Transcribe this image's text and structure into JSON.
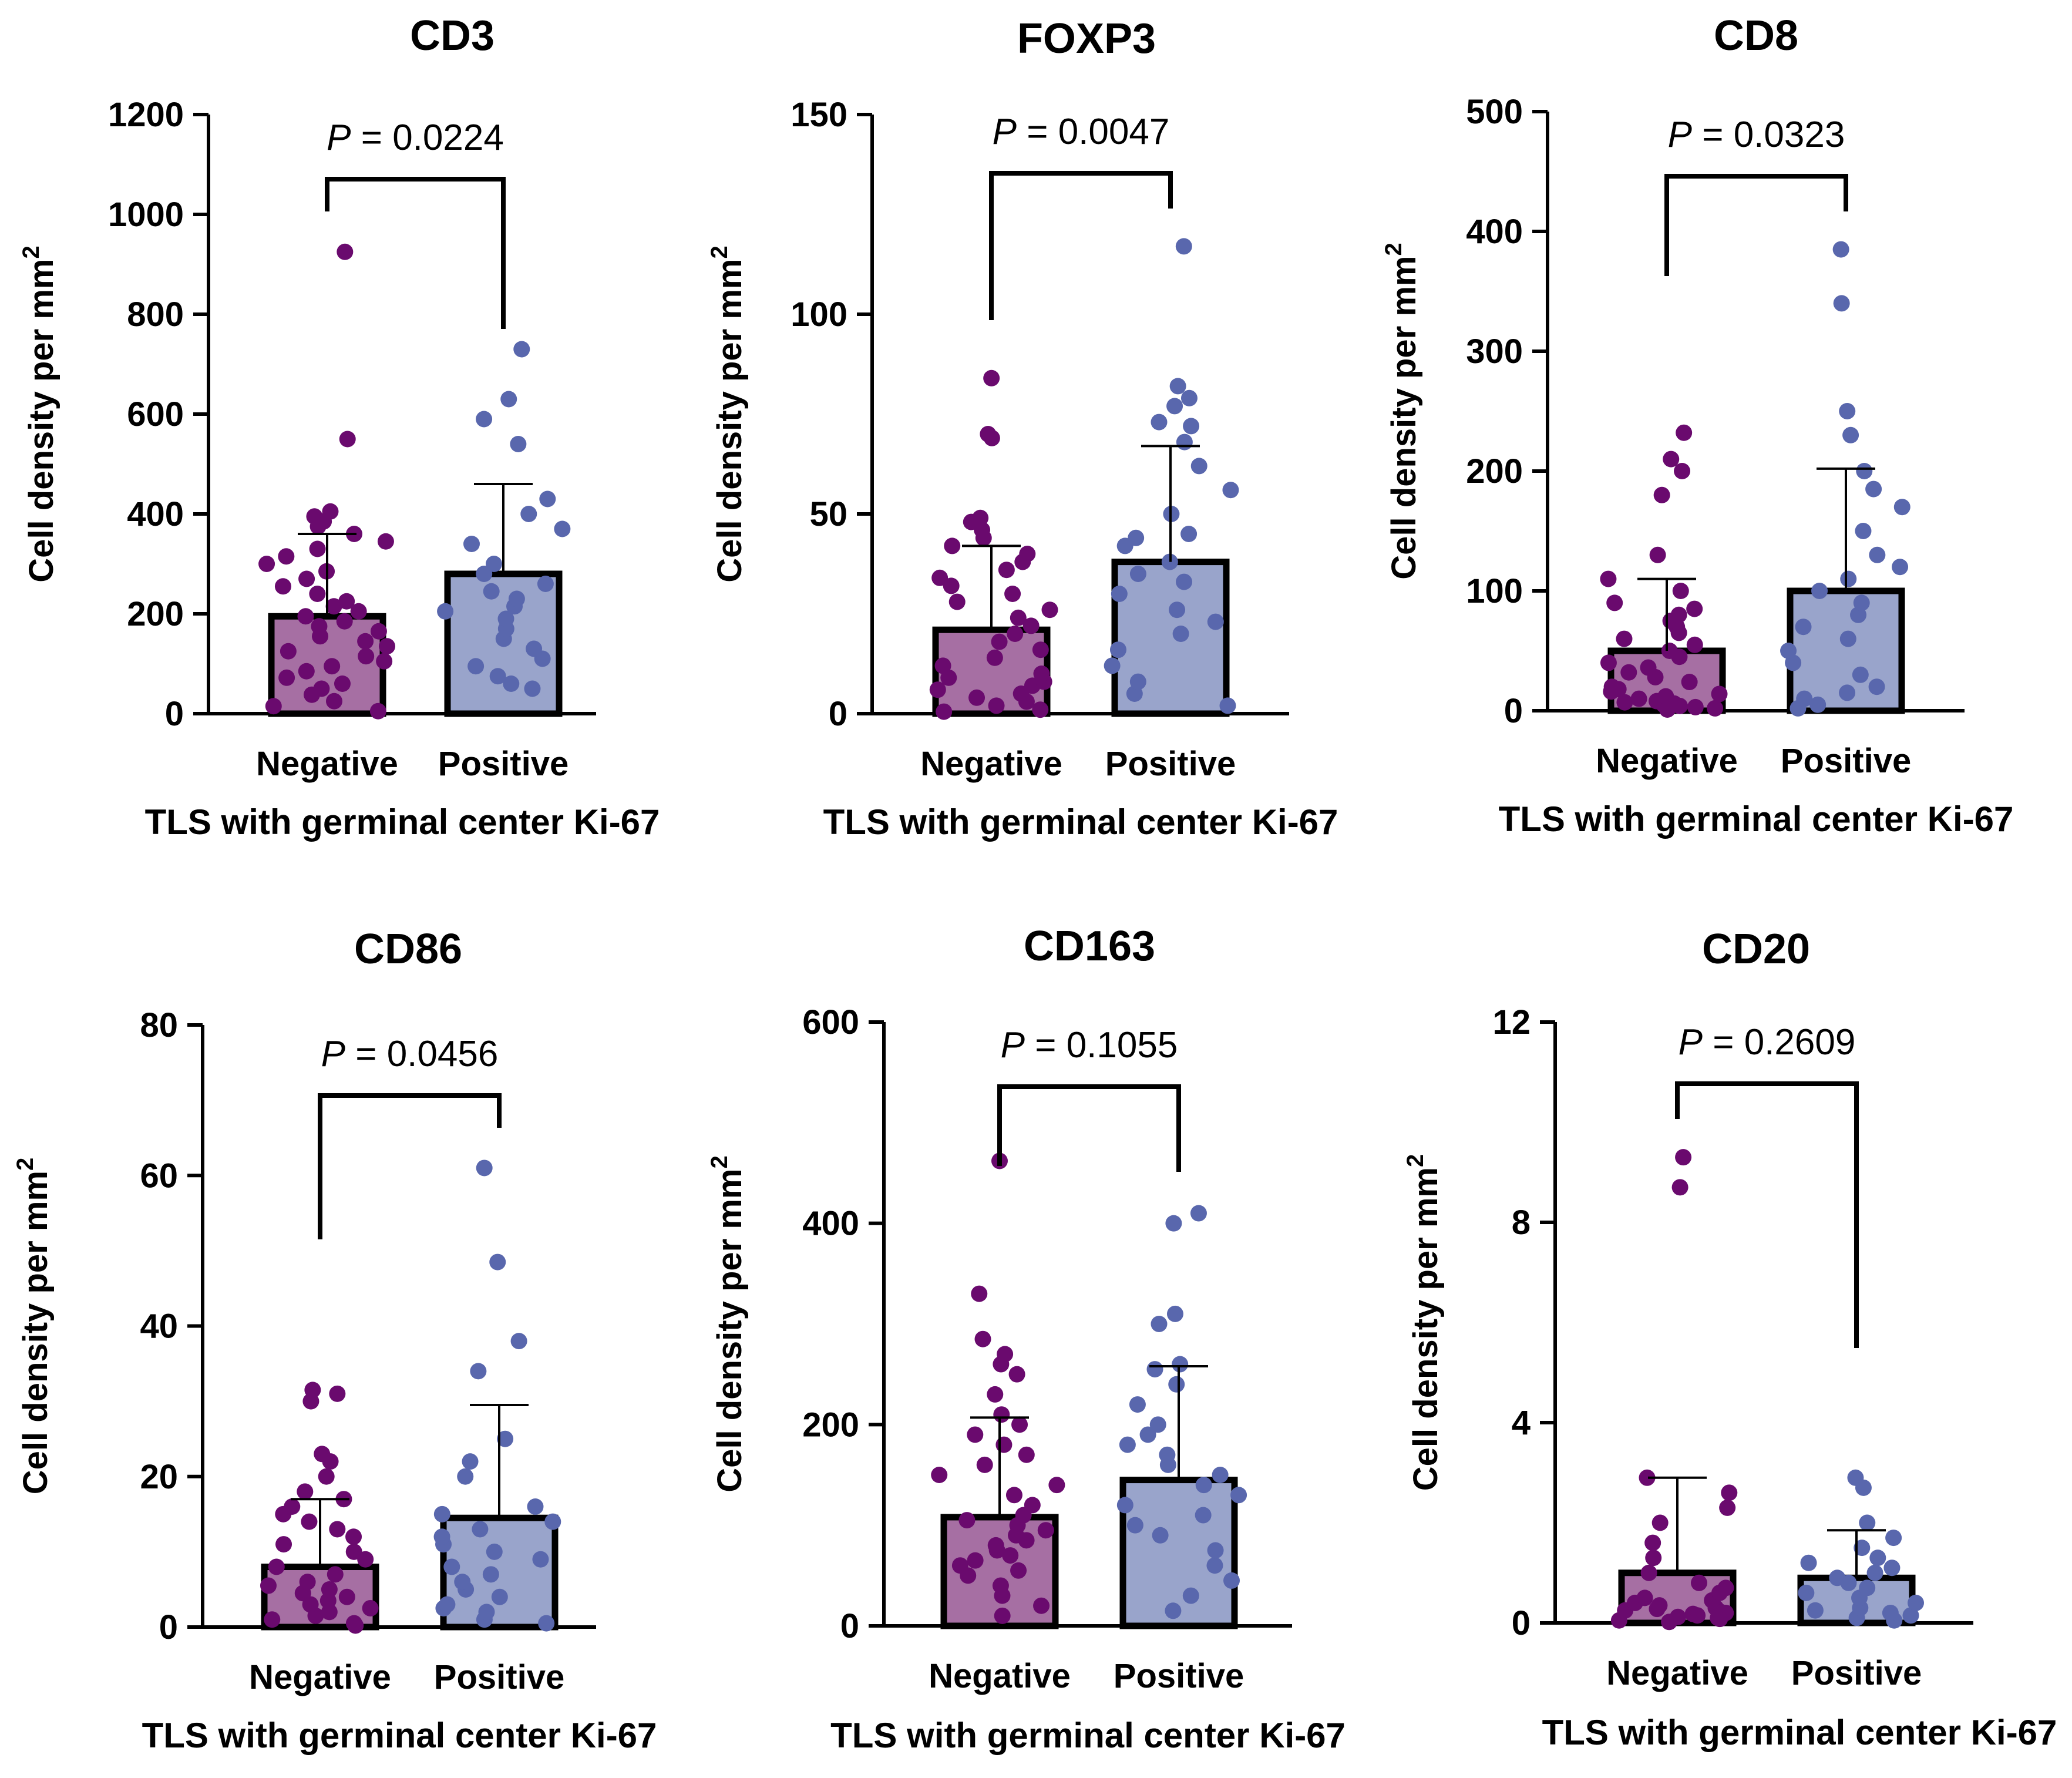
{
  "figure": {
    "colors": {
      "negative_bar": "#a66fa3",
      "negative_point": "#6a0a6e",
      "positive_bar": "#99a4cb",
      "positive_point": "#5967ad",
      "axis": "#000000"
    }
  },
  "chart_data": [
    {
      "type": "bar",
      "title": "CD3",
      "xlabel": "TLS with germinal center Ki-67",
      "ylabel": "Cell density per mm",
      "ylabel_sup": "2",
      "categories": [
        "Negative",
        "Positive"
      ],
      "ylim": [
        0,
        1200
      ],
      "yticks": [
        0,
        200,
        400,
        600,
        800,
        1000,
        1200
      ],
      "ytick_labels": [
        "0",
        "200",
        "400",
        "600",
        "800",
        "1000",
        "1200"
      ],
      "means": [
        195,
        280
      ],
      "sd_upper": [
        360,
        460
      ],
      "p_label_italic": "P",
      "p_label_value": " = 0.0224",
      "points": [
        [
          5,
          15,
          25,
          38,
          50,
          60,
          72,
          85,
          95,
          105,
          115,
          125,
          135,
          145,
          155,
          165,
          175,
          185,
          195,
          205,
          215,
          225,
          240,
          255,
          270,
          285,
          300,
          315,
          330,
          345,
          360,
          375,
          385,
          395,
          405,
          550,
          925
        ],
        [
          50,
          60,
          75,
          95,
          110,
          130,
          150,
          170,
          190,
          205,
          215,
          230,
          245,
          260,
          280,
          300,
          340,
          370,
          400,
          430,
          540,
          590,
          630,
          730
        ]
      ]
    },
    {
      "type": "bar",
      "title": "FOXP3",
      "xlabel": "TLS with germinal center Ki-67",
      "ylabel": "Cell density per mm",
      "ylabel_sup": "2",
      "categories": [
        "Negative",
        "Positive"
      ],
      "ylim": [
        0,
        150
      ],
      "yticks": [
        0,
        50,
        100,
        150
      ],
      "ytick_labels": [
        "0",
        "50",
        "100",
        "150"
      ],
      "means": [
        21,
        38
      ],
      "sd_upper": [
        42,
        67
      ],
      "p_label_italic": "P",
      "p_label_value": " = 0.0047",
      "points": [
        [
          0.5,
          1,
          2,
          3,
          4,
          5,
          6,
          7,
          8,
          9,
          10,
          12,
          14,
          16,
          18,
          20,
          22,
          24,
          26,
          28,
          30,
          32,
          34,
          36,
          38,
          40,
          42,
          44,
          46,
          48,
          49,
          69,
          70,
          84
        ],
        [
          2,
          5,
          8,
          12,
          16,
          20,
          23,
          26,
          30,
          33,
          35,
          38,
          42,
          44,
          45,
          50,
          56,
          62,
          68,
          72,
          73,
          77,
          79,
          82,
          117
        ]
      ]
    },
    {
      "type": "bar",
      "title": "CD8",
      "xlabel": "TLS with germinal center Ki-67",
      "ylabel": "Cell density per mm",
      "ylabel_sup": "2",
      "categories": [
        "Negative",
        "Positive"
      ],
      "ylim": [
        0,
        500
      ],
      "yticks": [
        0,
        100,
        200,
        300,
        400,
        500
      ],
      "ytick_labels": [
        "0",
        "100",
        "200",
        "300",
        "400",
        "500"
      ],
      "means": [
        50,
        100
      ],
      "sd_upper": [
        110,
        202
      ],
      "p_label_italic": "P",
      "p_label_value": " = 0.0323",
      "points": [
        [
          1,
          2,
          3,
          4,
          5,
          6,
          7,
          8,
          10,
          12,
          14,
          16,
          18,
          20,
          24,
          28,
          32,
          36,
          40,
          45,
          50,
          55,
          60,
          65,
          70,
          75,
          80,
          85,
          90,
          100,
          110,
          130,
          180,
          200,
          210,
          232
        ],
        [
          2,
          5,
          10,
          15,
          20,
          30,
          40,
          50,
          60,
          70,
          80,
          90,
          100,
          110,
          120,
          130,
          150,
          170,
          185,
          200,
          230,
          250,
          340,
          385
        ]
      ]
    },
    {
      "type": "bar",
      "title": "CD86",
      "xlabel": "TLS with germinal center Ki-67",
      "ylabel": "Cell density per mm",
      "ylabel_sup": "2",
      "categories": [
        "Negative",
        "Positive"
      ],
      "ylim": [
        0,
        80
      ],
      "yticks": [
        0,
        20,
        40,
        60,
        80
      ],
      "ytick_labels": [
        "0",
        "20",
        "40",
        "60",
        "80"
      ],
      "means": [
        8,
        14.5
      ],
      "sd_upper": [
        17,
        29.5
      ],
      "p_label_italic": "P",
      "p_label_value": " = 0.0456",
      "points": [
        [
          0.2,
          0.5,
          1,
          1.5,
          2,
          2.5,
          3,
          3.5,
          4,
          4.5,
          5,
          5.5,
          6,
          7,
          8,
          9,
          10,
          11,
          12,
          13,
          14,
          15,
          16,
          17,
          18,
          20,
          22,
          23,
          30,
          31,
          31.5
        ],
        [
          0.5,
          1,
          2,
          2.5,
          3,
          4,
          5,
          6,
          7,
          8,
          9,
          10,
          11,
          12,
          13,
          14,
          15,
          16,
          20,
          22,
          25,
          34,
          38,
          48.5,
          61
        ]
      ]
    },
    {
      "type": "bar",
      "title": "CD163",
      "xlabel": "TLS with germinal center Ki-67",
      "ylabel": "Cell density per mm",
      "ylabel_sup": "2",
      "categories": [
        "Negative",
        "Positive"
      ],
      "ylim": [
        0,
        600
      ],
      "yticks": [
        0,
        200,
        400,
        600
      ],
      "ytick_labels": [
        "0",
        "200",
        "400",
        "600"
      ],
      "means": [
        108,
        145
      ],
      "sd_upper": [
        207,
        258
      ],
      "p_label_italic": "P",
      "p_label_value": " = 0.1055",
      "points": [
        [
          10,
          20,
          30,
          40,
          50,
          55,
          60,
          65,
          70,
          75,
          80,
          85,
          90,
          95,
          100,
          105,
          110,
          120,
          130,
          140,
          150,
          160,
          170,
          180,
          190,
          200,
          210,
          230,
          250,
          260,
          270,
          285,
          330,
          462
        ],
        [
          15,
          30,
          45,
          60,
          75,
          90,
          100,
          110,
          120,
          130,
          140,
          150,
          160,
          170,
          180,
          190,
          200,
          220,
          240,
          255,
          260,
          300,
          310,
          400,
          410
        ]
      ]
    },
    {
      "type": "bar",
      "title": "CD20",
      "xlabel": "TLS with germinal center Ki-67",
      "ylabel": "Cell density per mm",
      "ylabel_sup": "2",
      "categories": [
        "Negative",
        "Positive"
      ],
      "ylim": [
        0,
        12
      ],
      "yticks": [
        0,
        4,
        8,
        12
      ],
      "ytick_labels": [
        "0",
        "4",
        "8",
        "12"
      ],
      "means": [
        1,
        0.9
      ],
      "sd_upper": [
        2.9,
        1.85
      ],
      "p_label_italic": "P",
      "p_label_value": " = 0.2609",
      "points": [
        [
          0.02,
          0.05,
          0.08,
          0.1,
          0.12,
          0.15,
          0.18,
          0.2,
          0.22,
          0.25,
          0.28,
          0.3,
          0.35,
          0.4,
          0.45,
          0.5,
          0.6,
          0.7,
          0.8,
          1.0,
          1.3,
          1.6,
          2.0,
          2.3,
          2.6,
          2.9,
          8.7,
          9.3
        ],
        [
          0.05,
          0.1,
          0.15,
          0.2,
          0.25,
          0.3,
          0.4,
          0.5,
          0.6,
          0.7,
          0.8,
          0.9,
          1.0,
          1.1,
          1.2,
          1.3,
          1.5,
          1.7,
          2.0,
          2.7,
          2.9
        ]
      ]
    }
  ]
}
